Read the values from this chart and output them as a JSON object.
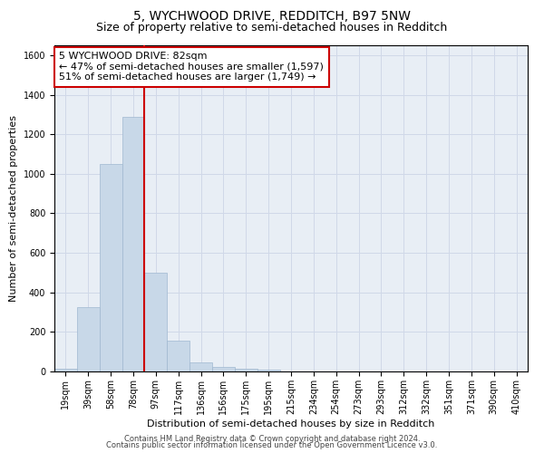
{
  "title": "5, WYCHWOOD DRIVE, REDDITCH, B97 5NW",
  "subtitle": "Size of property relative to semi-detached houses in Redditch",
  "xlabel": "Distribution of semi-detached houses by size in Redditch",
  "ylabel": "Number of semi-detached properties",
  "categories": [
    "19sqm",
    "39sqm",
    "58sqm",
    "78sqm",
    "97sqm",
    "117sqm",
    "136sqm",
    "156sqm",
    "175sqm",
    "195sqm",
    "215sqm",
    "234sqm",
    "254sqm",
    "273sqm",
    "293sqm",
    "312sqm",
    "332sqm",
    "351sqm",
    "371sqm",
    "390sqm",
    "410sqm"
  ],
  "values": [
    15,
    325,
    1050,
    1290,
    500,
    155,
    47,
    25,
    12,
    10,
    0,
    0,
    0,
    0,
    0,
    0,
    0,
    0,
    0,
    0,
    0
  ],
  "bar_color": "#c8d8e8",
  "bar_edge_color": "#a0b8d0",
  "red_line_x": 3.5,
  "annotation_text": "5 WYCHWOOD DRIVE: 82sqm\n← 47% of semi-detached houses are smaller (1,597)\n51% of semi-detached houses are larger (1,749) →",
  "annotation_box_color": "#ffffff",
  "annotation_box_edge_color": "#cc0000",
  "red_line_color": "#cc0000",
  "ylim": [
    0,
    1650
  ],
  "yticks": [
    0,
    200,
    400,
    600,
    800,
    1000,
    1200,
    1400,
    1600
  ],
  "grid_color": "#d0d8e8",
  "bg_color": "#e8eef5",
  "footer_line1": "Contains HM Land Registry data © Crown copyright and database right 2024.",
  "footer_line2": "Contains public sector information licensed under the Open Government Licence v3.0.",
  "title_fontsize": 10,
  "subtitle_fontsize": 9,
  "axis_label_fontsize": 8,
  "tick_fontsize": 7,
  "annotation_fontsize": 8,
  "footer_fontsize": 6
}
